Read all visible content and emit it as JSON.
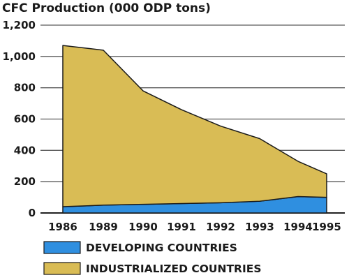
{
  "chart_data": {
    "type": "area",
    "stacked": true,
    "title": "CFC Production (000 ODP tons)",
    "xlabel": "",
    "ylabel": "",
    "x": [
      "1986",
      "1989",
      "1990",
      "1991",
      "1992",
      "1993",
      "1994",
      "1995"
    ],
    "ylim": [
      0,
      1200
    ],
    "yticks": [
      0,
      200,
      400,
      600,
      800,
      1000,
      1200
    ],
    "ytick_labels": [
      "0",
      "200",
      "400",
      "600",
      "800",
      "1,000",
      "1,200"
    ],
    "grid": true,
    "legend_position": "bottom",
    "series": [
      {
        "name": "DEVELOPING COUNTRIES",
        "color": "#2f8fe0",
        "values": [
          40,
          50,
          55,
          60,
          65,
          75,
          105,
          100
        ]
      },
      {
        "name": "INDUSTRIALIZED COUNTRIES",
        "color": "#d9bc55",
        "values": [
          1030,
          990,
          725,
          600,
          490,
          400,
          225,
          150
        ]
      }
    ]
  }
}
